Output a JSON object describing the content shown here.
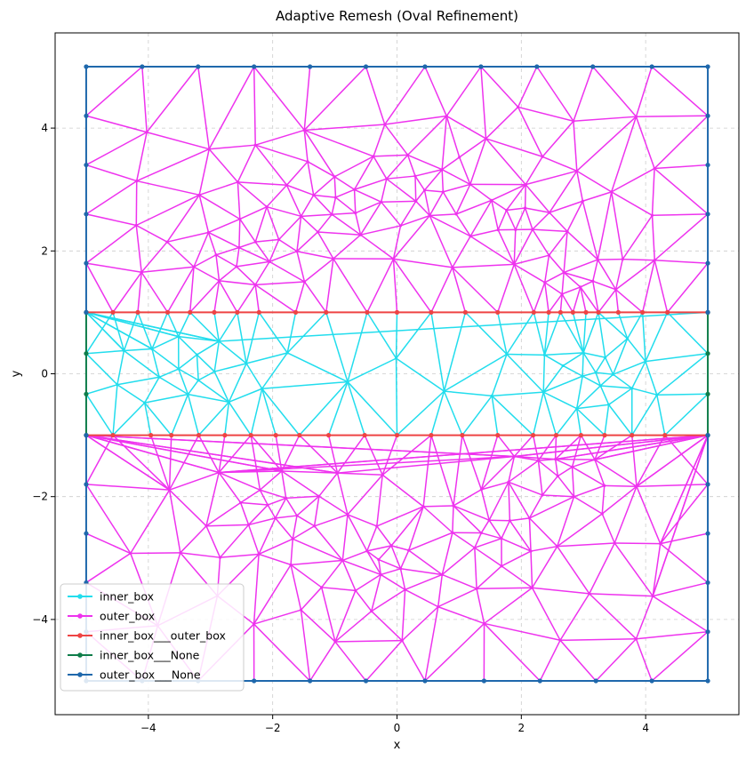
{
  "chart_data": {
    "type": "line",
    "title": "Adaptive Remesh (Oval Refinement)",
    "xlabel": "x",
    "ylabel": "y",
    "xlim": [
      -5.5,
      5.5
    ],
    "ylim": [
      -5.55,
      5.55
    ],
    "xticks": [
      -4,
      -2,
      0,
      2,
      4
    ],
    "yticks": [
      -4,
      -2,
      0,
      2,
      4
    ],
    "xtick_labels": [
      "−4",
      "−2",
      "0",
      "2",
      "4"
    ],
    "ytick_labels": [
      "−4",
      "−2",
      "0",
      "2",
      "4"
    ],
    "grid": true,
    "legend_position": "lower-left",
    "series": [
      {
        "name": "inner_box",
        "color": "#22dded",
        "region": {
          "xmin": -5,
          "xmax": 5,
          "ymin": -1,
          "ymax": 1
        },
        "refinement_centers": [
          [
            -3.3,
            0
          ],
          [
            3.2,
            0
          ]
        ]
      },
      {
        "name": "outer_box",
        "color": "#ee33ee",
        "regions": [
          {
            "xmin": -5,
            "xmax": 5,
            "ymin": 1,
            "ymax": 5
          },
          {
            "xmin": -5,
            "xmax": 5,
            "ymin": -5,
            "ymax": -1
          }
        ],
        "refinement_centers": [
          [
            -2.4,
            2.0
          ],
          [
            -1.0,
            2.7
          ],
          [
            0.5,
            3.0
          ],
          [
            2.0,
            2.5
          ],
          [
            2.9,
            1.4
          ],
          [
            -2.0,
            -2.2
          ],
          [
            -0.3,
            -3.0
          ],
          [
            1.5,
            -2.6
          ],
          [
            2.6,
            -1.6
          ]
        ]
      },
      {
        "name": "inner_box___outer_box",
        "color": "#ee4444",
        "lines": [
          [
            [
              -5,
              1
            ],
            [
              -4.57,
              1
            ],
            [
              -4.17,
              1
            ],
            [
              -3.69,
              1
            ],
            [
              -3.33,
              1
            ],
            [
              -2.94,
              1
            ],
            [
              -2.57,
              1
            ],
            [
              -2.22,
              1
            ],
            [
              -1.63,
              1
            ],
            [
              -1.14,
              1
            ],
            [
              -0.48,
              1
            ],
            [
              0,
              1
            ],
            [
              0.55,
              1
            ],
            [
              1.1,
              1
            ],
            [
              1.62,
              1
            ],
            [
              2.2,
              1
            ],
            [
              2.44,
              1
            ],
            [
              2.63,
              1
            ],
            [
              2.83,
              1
            ],
            [
              3.04,
              1
            ],
            [
              3.24,
              1
            ],
            [
              3.56,
              1
            ],
            [
              3.95,
              1
            ],
            [
              4.35,
              1
            ],
            [
              5,
              1
            ]
          ],
          [
            [
              -5,
              -1
            ],
            [
              -4.57,
              -1
            ],
            [
              -3.96,
              -1
            ],
            [
              -3.63,
              -1
            ],
            [
              -3.19,
              -1
            ],
            [
              -2.77,
              -1
            ],
            [
              -2.35,
              -1
            ],
            [
              -1.95,
              -1
            ],
            [
              -1.57,
              -1
            ],
            [
              -1.1,
              -1
            ],
            [
              -0.52,
              -1
            ],
            [
              0,
              -1
            ],
            [
              0.55,
              -1
            ],
            [
              1.05,
              -1
            ],
            [
              1.62,
              -1
            ],
            [
              2.19,
              -1
            ],
            [
              2.56,
              -1
            ],
            [
              2.96,
              -1
            ],
            [
              3.34,
              -1
            ],
            [
              3.78,
              -1
            ],
            [
              4.31,
              -1
            ],
            [
              5,
              -1
            ]
          ]
        ]
      },
      {
        "name": "inner_box___None",
        "color": "#0e7d4a",
        "lines": [
          [
            [
              -5,
              -1
            ],
            [
              -5,
              -0.33
            ],
            [
              -5,
              0.33
            ],
            [
              -5,
              1
            ]
          ],
          [
            [
              5,
              -1
            ],
            [
              5,
              -0.33
            ],
            [
              5,
              0.33
            ],
            [
              5,
              1
            ]
          ]
        ]
      },
      {
        "name": "outer_box___None",
        "color": "#1f68ac",
        "lines": [
          [
            [
              -5,
              1
            ],
            [
              -5,
              1.8
            ],
            [
              -5,
              2.6
            ],
            [
              -5,
              3.4
            ],
            [
              -5,
              4.2
            ],
            [
              -5,
              5
            ],
            [
              -4.1,
              5
            ],
            [
              -3.2,
              5
            ],
            [
              -2.3,
              5
            ],
            [
              -1.4,
              5
            ],
            [
              -0.5,
              5
            ],
            [
              0.45,
              5
            ],
            [
              1.35,
              5
            ],
            [
              2.25,
              5
            ],
            [
              3.15,
              5
            ],
            [
              4.1,
              5
            ],
            [
              5,
              5
            ],
            [
              5,
              4.2
            ],
            [
              5,
              3.4
            ],
            [
              5,
              2.6
            ],
            [
              5,
              1.8
            ],
            [
              5,
              1
            ]
          ],
          [
            [
              -5,
              -1
            ],
            [
              -5,
              -1.8
            ],
            [
              -5,
              -2.6
            ],
            [
              -5,
              -3.4
            ],
            [
              -5,
              -4.2
            ],
            [
              -5,
              -5
            ],
            [
              -4.1,
              -5
            ],
            [
              -3.2,
              -5
            ],
            [
              -2.3,
              -5
            ],
            [
              -1.4,
              -5
            ],
            [
              -0.5,
              -5
            ],
            [
              0.45,
              -5
            ],
            [
              1.4,
              -5
            ],
            [
              2.3,
              -5
            ],
            [
              3.2,
              -5
            ],
            [
              4.1,
              -5
            ],
            [
              5,
              -5
            ],
            [
              5,
              -4.2
            ],
            [
              5,
              -3.4
            ],
            [
              5,
              -2.6
            ],
            [
              5,
              -1.8
            ],
            [
              5,
              -1
            ]
          ]
        ]
      }
    ]
  }
}
